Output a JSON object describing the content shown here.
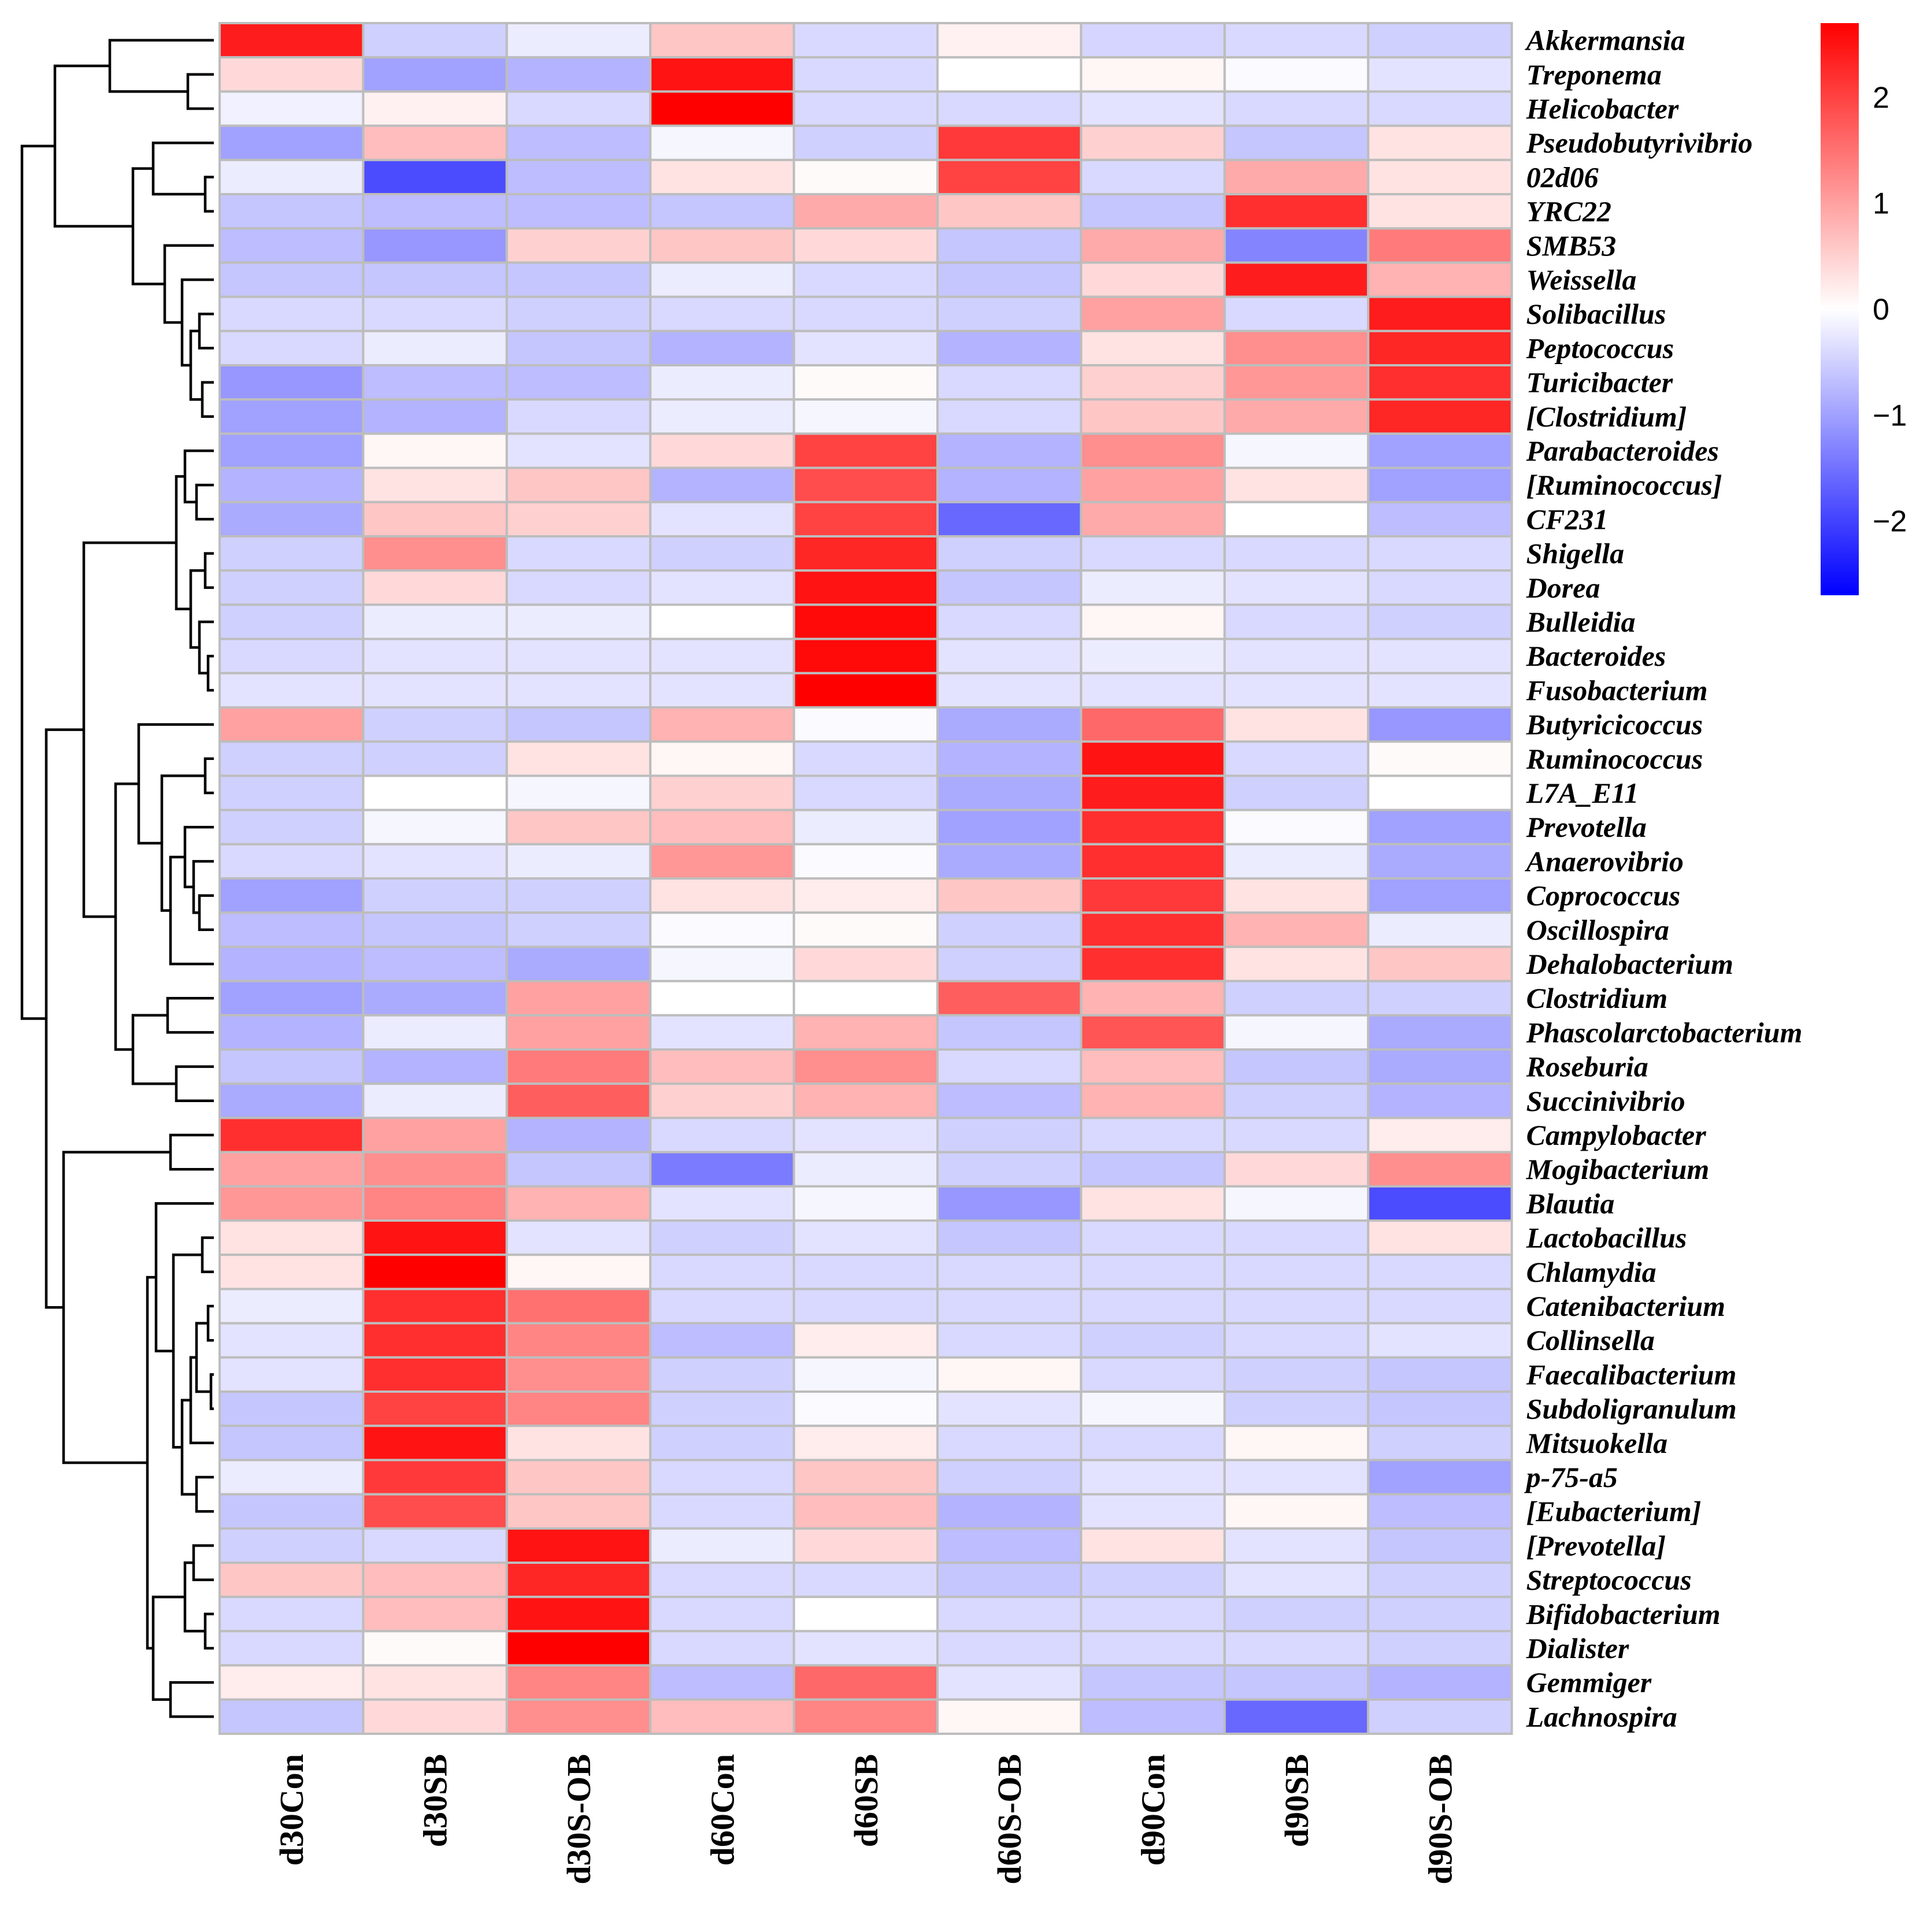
{
  "chart_data": {
    "type": "heatmap",
    "title": "",
    "columns": [
      "d30Con",
      "d30SB",
      "d30S-OB",
      "d60Con",
      "d60SB",
      "d60S-OB",
      "d90Con",
      "d90SB",
      "d90S-OB"
    ],
    "rows": [
      "Akkermansia",
      "Treponema",
      "Helicobacter",
      "Pseudobutyrivibrio",
      "02d06",
      "YRC22",
      "SMB53",
      "Weissella",
      "Solibacillus",
      "Peptococcus",
      "Turicibacter",
      "[Clostridium]",
      "Parabacteroides",
      "[Ruminococcus]",
      "CF231",
      "Shigella",
      "Dorea",
      "Bulleidia",
      "Bacteroides",
      "Fusobacterium",
      "Butyricicoccus",
      "Ruminococcus",
      "L7A_E11",
      "Prevotella",
      "Anaerovibrio",
      "Coprococcus",
      "Oscillospira",
      "Dehalobacterium",
      "Clostridium",
      "Phascolarctobacterium",
      "Roseburia",
      "Succinivibrio",
      "Campylobacter",
      "Mogibacterium",
      "Blautia",
      "Lactobacillus",
      "Chlamydia",
      "Catenibacterium",
      "Collinsella",
      "Faecalibacterium",
      "Subdoligranulum",
      "Mitsuokella",
      "p-75-a5",
      "[Eubacterium]",
      "[Prevotella]",
      "Streptococcus",
      "Bifidobacterium",
      "Dialister",
      "Gemmiger",
      "Lachnospira"
    ],
    "values": [
      [
        2.4,
        -0.5,
        -0.2,
        0.6,
        -0.4,
        0.15,
        -0.45,
        -0.4,
        -0.5
      ],
      [
        0.4,
        -1.0,
        -0.8,
        2.5,
        -0.4,
        0.0,
        0.1,
        -0.05,
        -0.3
      ],
      [
        -0.15,
        0.15,
        -0.4,
        2.7,
        -0.4,
        -0.4,
        -0.3,
        -0.4,
        -0.4
      ],
      [
        -1.0,
        0.7,
        -0.7,
        -0.1,
        -0.5,
        2.1,
        0.5,
        -0.6,
        0.3
      ],
      [
        -0.2,
        -1.9,
        -0.7,
        0.3,
        0.05,
        2.0,
        -0.4,
        0.9,
        0.3
      ],
      [
        -0.6,
        -0.7,
        -0.7,
        -0.6,
        0.9,
        0.6,
        -0.6,
        2.2,
        0.3
      ],
      [
        -0.7,
        -1.1,
        0.5,
        0.6,
        0.4,
        -0.6,
        0.9,
        -1.3,
        1.4
      ],
      [
        -0.6,
        -0.6,
        -0.6,
        -0.2,
        -0.4,
        -0.6,
        0.4,
        2.4,
        0.8
      ],
      [
        -0.4,
        -0.4,
        -0.5,
        -0.4,
        -0.4,
        -0.5,
        1.0,
        -0.4,
        2.4
      ],
      [
        -0.4,
        -0.2,
        -0.6,
        -0.8,
        -0.3,
        -0.8,
        0.3,
        1.2,
        2.3
      ],
      [
        -1.1,
        -0.7,
        -0.7,
        -0.2,
        0.05,
        -0.4,
        0.5,
        1.1,
        2.2
      ],
      [
        -1.0,
        -0.8,
        -0.4,
        -0.2,
        -0.1,
        -0.4,
        0.6,
        0.9,
        2.3
      ],
      [
        -1.0,
        0.1,
        -0.3,
        0.4,
        2.0,
        -0.8,
        1.2,
        -0.1,
        -1.0
      ],
      [
        -0.8,
        0.3,
        0.6,
        -0.8,
        1.9,
        -0.8,
        1.0,
        0.3,
        -1.0
      ],
      [
        -0.9,
        0.6,
        0.5,
        -0.3,
        2.0,
        -1.6,
        0.9,
        0.0,
        -0.7
      ],
      [
        -0.5,
        1.2,
        -0.4,
        -0.5,
        2.3,
        -0.5,
        -0.4,
        -0.4,
        -0.4
      ],
      [
        -0.5,
        0.4,
        -0.4,
        -0.3,
        2.5,
        -0.6,
        -0.2,
        -0.3,
        -0.4
      ],
      [
        -0.5,
        -0.2,
        -0.2,
        0.0,
        2.6,
        -0.4,
        0.1,
        -0.4,
        -0.5
      ],
      [
        -0.4,
        -0.3,
        -0.3,
        -0.3,
        2.6,
        -0.3,
        -0.2,
        -0.3,
        -0.3
      ],
      [
        -0.3,
        -0.3,
        -0.3,
        -0.3,
        2.7,
        -0.3,
        -0.3,
        -0.3,
        -0.3
      ],
      [
        1.0,
        -0.5,
        -0.6,
        0.8,
        -0.05,
        -0.9,
        1.6,
        0.3,
        -1.1
      ],
      [
        -0.5,
        -0.5,
        0.3,
        0.1,
        -0.4,
        -0.8,
        2.5,
        -0.4,
        0.05
      ],
      [
        -0.5,
        0.0,
        -0.1,
        0.5,
        -0.4,
        -0.9,
        2.4,
        -0.5,
        0.0
      ],
      [
        -0.5,
        -0.1,
        0.6,
        0.7,
        -0.2,
        -1.0,
        2.2,
        -0.05,
        -1.0
      ],
      [
        -0.4,
        -0.3,
        -0.2,
        1.1,
        -0.05,
        -0.9,
        2.2,
        -0.2,
        -0.9
      ],
      [
        -1.0,
        -0.5,
        -0.5,
        0.3,
        0.2,
        0.6,
        2.1,
        0.3,
        -1.0
      ],
      [
        -0.7,
        -0.6,
        -0.5,
        -0.05,
        0.05,
        -0.5,
        2.2,
        0.8,
        -0.2
      ],
      [
        -0.8,
        -0.7,
        -0.9,
        -0.1,
        0.4,
        -0.5,
        2.2,
        0.3,
        0.6
      ],
      [
        -1.0,
        -0.9,
        1.0,
        0.0,
        0.0,
        1.7,
        0.8,
        -0.5,
        -0.5
      ],
      [
        -0.8,
        -0.2,
        1.0,
        -0.3,
        0.8,
        -0.6,
        1.8,
        -0.1,
        -0.9
      ],
      [
        -0.6,
        -0.8,
        1.4,
        0.7,
        1.2,
        -0.4,
        0.7,
        -0.6,
        -0.9
      ],
      [
        -0.9,
        -0.2,
        1.7,
        0.5,
        0.8,
        -0.7,
        0.8,
        -0.5,
        -0.8
      ],
      [
        2.2,
        1.0,
        -0.8,
        -0.4,
        -0.3,
        -0.5,
        -0.4,
        -0.4,
        0.2
      ],
      [
        1.0,
        1.2,
        -0.6,
        -1.4,
        -0.2,
        -0.5,
        -0.6,
        0.4,
        1.2
      ],
      [
        1.1,
        1.3,
        0.8,
        -0.3,
        -0.1,
        -1.1,
        0.3,
        -0.1,
        -1.9
      ],
      [
        0.3,
        2.5,
        -0.3,
        -0.5,
        -0.3,
        -0.6,
        -0.4,
        -0.4,
        0.3
      ],
      [
        0.3,
        2.7,
        0.1,
        -0.4,
        -0.4,
        -0.4,
        -0.4,
        -0.4,
        -0.4
      ],
      [
        -0.2,
        2.2,
        1.5,
        -0.4,
        -0.4,
        -0.4,
        -0.4,
        -0.4,
        -0.4
      ],
      [
        -0.3,
        2.2,
        1.3,
        -0.7,
        0.2,
        -0.4,
        -0.5,
        -0.4,
        -0.3
      ],
      [
        -0.3,
        2.2,
        1.2,
        -0.5,
        -0.1,
        0.1,
        -0.4,
        -0.5,
        -0.6
      ],
      [
        -0.6,
        2.0,
        1.3,
        -0.5,
        -0.05,
        -0.3,
        -0.1,
        -0.5,
        -0.6
      ],
      [
        -0.6,
        2.5,
        0.3,
        -0.5,
        0.2,
        -0.4,
        -0.4,
        0.1,
        -0.5
      ],
      [
        -0.2,
        2.1,
        0.6,
        -0.4,
        0.6,
        -0.5,
        -0.3,
        -0.3,
        -1.0
      ],
      [
        -0.6,
        1.9,
        0.6,
        -0.4,
        0.7,
        -0.8,
        -0.3,
        0.1,
        -0.7
      ],
      [
        -0.5,
        -0.4,
        2.5,
        -0.2,
        0.4,
        -0.7,
        0.3,
        -0.3,
        -0.6
      ],
      [
        0.6,
        0.7,
        2.3,
        -0.4,
        -0.4,
        -0.6,
        -0.5,
        -0.3,
        -0.5
      ],
      [
        -0.4,
        0.7,
        2.5,
        -0.4,
        0.0,
        -0.4,
        -0.4,
        -0.5,
        -0.5
      ],
      [
        -0.4,
        0.05,
        2.7,
        -0.4,
        -0.3,
        -0.4,
        -0.4,
        -0.4,
        -0.5
      ],
      [
        0.2,
        0.3,
        1.3,
        -0.7,
        1.6,
        -0.3,
        -0.6,
        -0.6,
        -0.8
      ],
      [
        -0.6,
        0.4,
        1.2,
        0.7,
        1.3,
        0.1,
        -0.7,
        -1.6,
        -0.5
      ]
    ],
    "color_scale": {
      "low_color": "#0000FF",
      "mid_color": "#FFFFFF",
      "high_color": "#FF0000",
      "range": [
        -2.7,
        2.7
      ],
      "ticks": [
        2,
        1,
        0,
        -1,
        -2
      ],
      "tick_labels": [
        "2",
        "1",
        "0",
        "−1",
        "−2"
      ]
    },
    "legend_placement": "top-right",
    "row_dendrogram": true,
    "column_dendrogram": false,
    "grid": true
  }
}
